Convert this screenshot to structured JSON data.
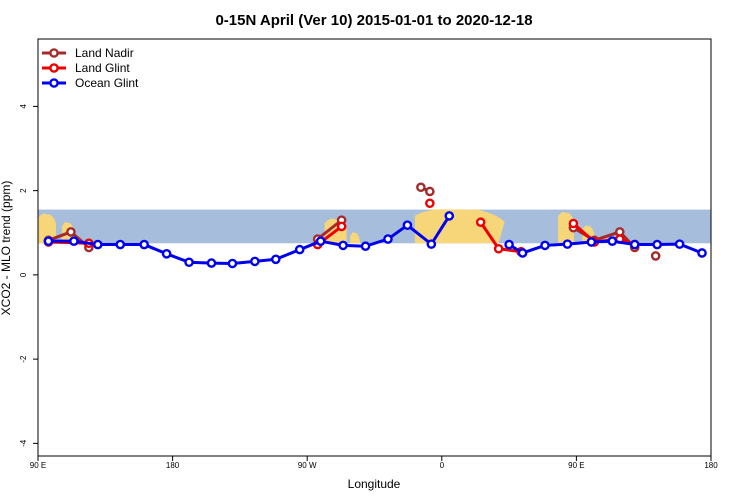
{
  "chart_data": {
    "type": "line",
    "title": "0-15N April (Ver 10)   2015-01-01 to 2020-12-18",
    "xlabel": "Longitude",
    "ylabel": "XCO2 - MLO trend (ppm)",
    "xlim": [
      90,
      540
    ],
    "ylim": [
      -4.3,
      5.6
    ],
    "x_ticks": [
      {
        "value": 90,
        "label": "90 E"
      },
      {
        "value": 180,
        "label": "180"
      },
      {
        "value": 270,
        "label": "90 W"
      },
      {
        "value": 360,
        "label": "0"
      },
      {
        "value": 450,
        "label": "90 E"
      },
      {
        "value": 540,
        "label": "180"
      }
    ],
    "y_ticks": [
      {
        "value": -4,
        "label": "-4"
      },
      {
        "value": -2,
        "label": "-2"
      },
      {
        "value": 0,
        "label": "0"
      },
      {
        "value": 2,
        "label": "2"
      },
      {
        "value": 4,
        "label": "4"
      }
    ],
    "band": {
      "ymin": 0.75,
      "ymax": 1.55,
      "color": "#a6bddb",
      "land_color": "#f7d67a"
    },
    "legend_position": "top-left",
    "grid": false,
    "series": [
      {
        "name": "Land Nadir",
        "color": "#a52a2a",
        "segments": [
          [
            [
              97,
              0.82
            ],
            [
              112,
              1.02
            ],
            [
              124,
              0.65
            ]
          ],
          [
            [
              277,
              0.85
            ],
            [
              293,
              1.3
            ]
          ],
          [
            [
              346,
              2.08
            ],
            [
              352,
              1.98
            ]
          ],
          [
            [
              448,
              1.12
            ],
            [
              462,
              0.82
            ],
            [
              479,
              1.02
            ],
            [
              489,
              0.65
            ]
          ],
          [
            [
              503,
              0.45
            ]
          ]
        ]
      },
      {
        "name": "Land Glint",
        "color": "#ee0000",
        "segments": [
          [
            [
              97,
              0.78
            ],
            [
              124,
              0.75
            ]
          ],
          [
            [
              277,
              0.72
            ],
            [
              293,
              1.15
            ]
          ],
          [
            [
              352,
              1.7
            ]
          ],
          [
            [
              386,
              1.25
            ],
            [
              398,
              0.62
            ],
            [
              413,
              0.55
            ]
          ],
          [
            [
              448,
              1.22
            ],
            [
              462,
              0.78
            ],
            [
              479,
              0.85
            ],
            [
              489,
              0.72
            ]
          ]
        ]
      },
      {
        "name": "Ocean Glint",
        "color": "#0000ee",
        "segments": [
          [
            [
              97,
              0.8
            ],
            [
              114,
              0.8
            ],
            [
              130,
              0.72
            ],
            [
              145,
              0.72
            ],
            [
              161,
              0.72
            ],
            [
              176,
              0.5
            ],
            [
              191,
              0.3
            ],
            [
              206,
              0.28
            ],
            [
              220,
              0.27
            ],
            [
              235,
              0.32
            ],
            [
              249,
              0.37
            ],
            [
              265,
              0.6
            ],
            [
              279,
              0.8
            ],
            [
              294,
              0.7
            ],
            [
              309,
              0.68
            ],
            [
              324,
              0.85
            ],
            [
              337,
              1.18
            ],
            [
              353,
              0.73
            ],
            [
              365,
              1.4
            ]
          ],
          [
            [
              405,
              0.72
            ],
            [
              414,
              0.52
            ],
            [
              429,
              0.7
            ],
            [
              444,
              0.73
            ],
            [
              460,
              0.78
            ],
            [
              474,
              0.8
            ],
            [
              489,
              0.72
            ],
            [
              504,
              0.72
            ],
            [
              519,
              0.73
            ],
            [
              534,
              0.52
            ]
          ]
        ]
      }
    ]
  }
}
